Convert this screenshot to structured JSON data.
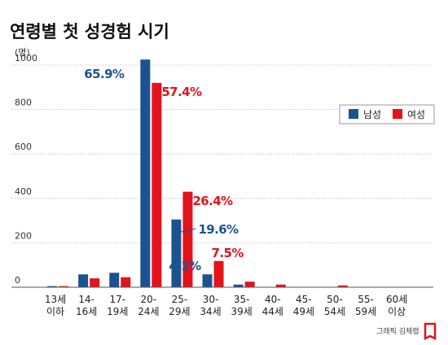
{
  "chart_data": {
    "type": "bar",
    "title": "연령별 첫 성경험 시기",
    "unit": "(명)",
    "ylim": [
      0,
      1000
    ],
    "yticks": [
      0,
      200,
      400,
      600,
      800,
      1000
    ],
    "categories": [
      [
        "13세",
        "이하"
      ],
      [
        "14-",
        "16세"
      ],
      [
        "17-",
        "19세"
      ],
      [
        "20-",
        "24세"
      ],
      [
        "25-",
        "29세"
      ],
      [
        "30-",
        "34세"
      ],
      [
        "35-",
        "39세"
      ],
      [
        "40-",
        "44세"
      ],
      [
        "45-",
        "49세"
      ],
      [
        "50-",
        "54세"
      ],
      [
        "55-",
        "59세"
      ],
      [
        "60세",
        "이상"
      ]
    ],
    "series": [
      {
        "name": "남성",
        "color": "#1b5390",
        "values": [
          5,
          58,
          65,
          1025,
          305,
          58,
          12,
          0,
          0,
          0,
          0,
          0
        ]
      },
      {
        "name": "여성",
        "color": "#e2131d",
        "values": [
          5,
          40,
          45,
          920,
          430,
          118,
          25,
          12,
          0,
          8,
          0,
          0
        ]
      }
    ],
    "annotations": [
      {
        "text": "65.9%",
        "series": 0,
        "category": 3
      },
      {
        "text": "57.4%",
        "series": 1,
        "category": 3
      },
      {
        "text": "26.4%",
        "series": 1,
        "category": 4
      },
      {
        "text": "19.6%",
        "series": 0,
        "category": 4
      },
      {
        "text": "4.1%",
        "series": 0,
        "category": 5
      },
      {
        "text": "7.5%",
        "series": 1,
        "category": 5
      }
    ],
    "legend_position": "right",
    "grid": true
  },
  "credit": "그래픽 김체령",
  "credit_icon": "asiae-logo-icon"
}
